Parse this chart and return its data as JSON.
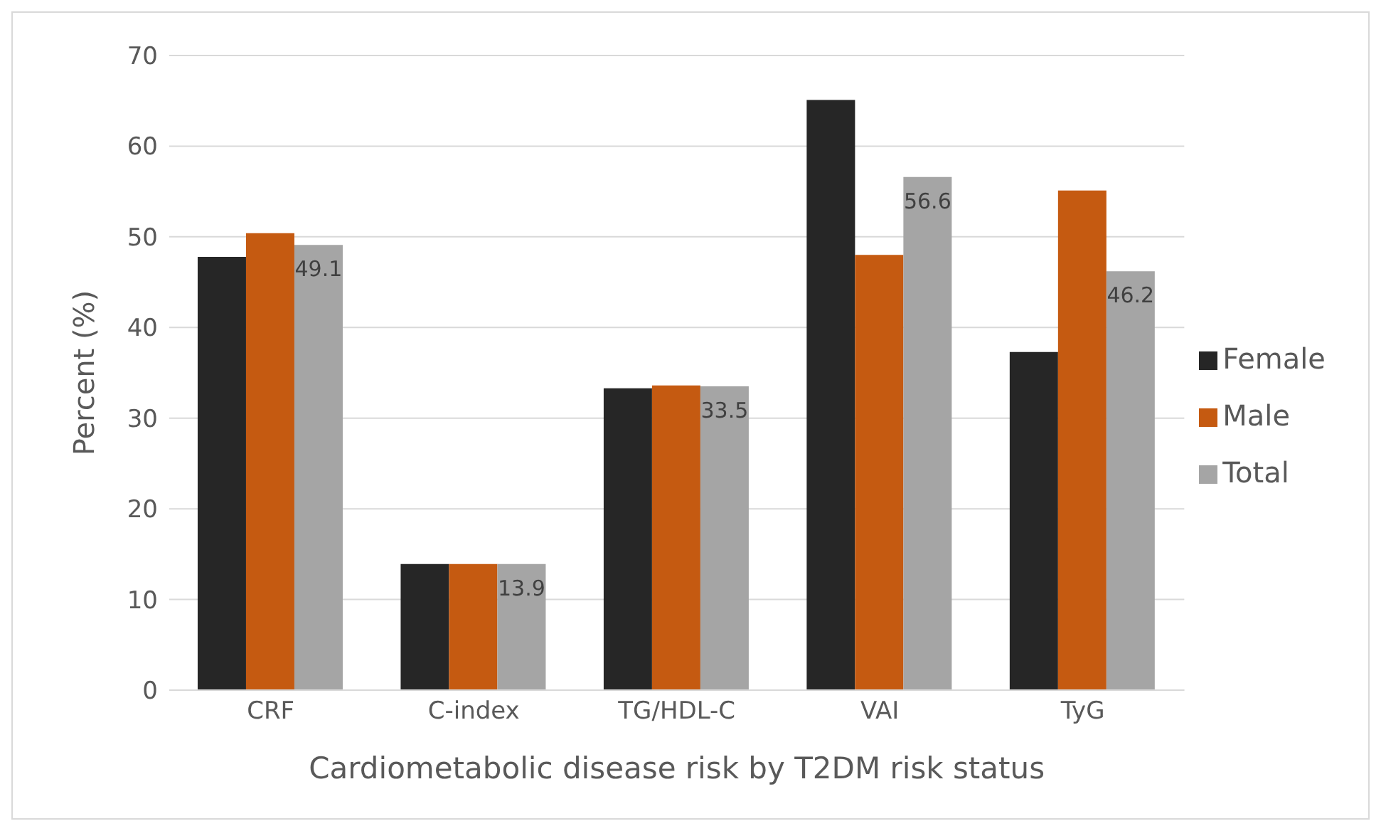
{
  "chart_data": {
    "type": "bar",
    "xlabel": "Cardiometabolic disease risk by T2DM risk status",
    "ylabel": "Percent (%)",
    "categories": [
      "CRF",
      "C-index",
      "TG/HDL-C",
      "VAI",
      "TyG"
    ],
    "series": [
      {
        "name": "Female",
        "color": "#262626",
        "values": [
          47.8,
          13.9,
          33.3,
          65.1,
          37.3
        ]
      },
      {
        "name": "Male",
        "color": "#c55a11",
        "values": [
          50.4,
          13.9,
          33.6,
          48.0,
          55.1
        ]
      },
      {
        "name": "Total",
        "color": "#a5a5a5",
        "values": [
          49.1,
          13.9,
          33.5,
          56.6,
          46.2
        ],
        "value_labels": [
          "49.1",
          "13.9",
          "33.5",
          "56.6",
          "46.2"
        ]
      }
    ],
    "ylim": [
      0,
      70
    ],
    "yticks": [
      0,
      10,
      20,
      30,
      40,
      50,
      60,
      70
    ],
    "grid": "y",
    "legend": "right"
  }
}
